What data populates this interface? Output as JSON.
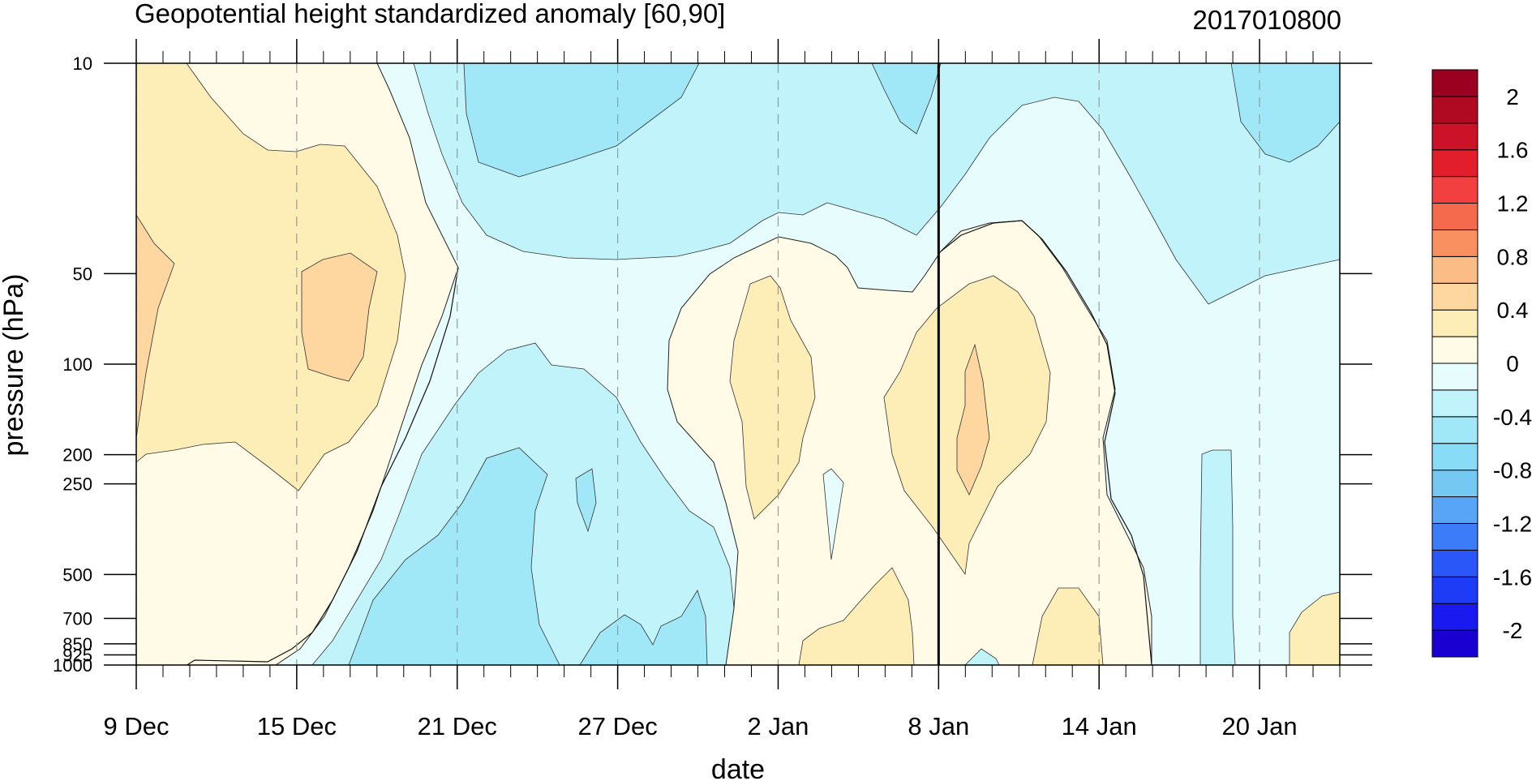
{
  "chart_data": {
    "type": "heatmap",
    "title": "Geopotential height standardized anomaly [60,90]",
    "subtitle": "2017010800",
    "xlabel": "date",
    "ylabel": "pressure (hPa)",
    "x_range": [
      "2016-12-09",
      "2017-01-23"
    ],
    "x_ticks": [
      {
        "date": "2016-12-09",
        "label": "9 Dec"
      },
      {
        "date": "2016-12-15",
        "label": "15 Dec"
      },
      {
        "date": "2016-12-21",
        "label": "21 Dec"
      },
      {
        "date": "2016-12-27",
        "label": "27 Dec"
      },
      {
        "date": "2017-01-02",
        "label": "2 Jan"
      },
      {
        "date": "2017-01-08",
        "label": "8 Jan"
      },
      {
        "date": "2017-01-14",
        "label": "14 Jan"
      },
      {
        "date": "2017-01-20",
        "label": "20 Jan"
      }
    ],
    "y_scale": "log",
    "y_range": [
      1000,
      10
    ],
    "y_ticks": [
      {
        "value": 10,
        "label": "10"
      },
      {
        "value": 50,
        "label": "50"
      },
      {
        "value": 100,
        "label": "100"
      },
      {
        "value": 200,
        "label": "200"
      },
      {
        "value": 250,
        "label": "250"
      },
      {
        "value": 500,
        "label": "500"
      },
      {
        "value": 700,
        "label": "700"
      },
      {
        "value": 850,
        "label": "850"
      },
      {
        "value": 925,
        "label": "925"
      },
      {
        "value": 1000,
        "label": "1000"
      }
    ],
    "marker_date": "2017-01-08",
    "grid": "vertical dashed lines at labeled dates",
    "colorbar": {
      "placement": "right",
      "levels": [
        -2.2,
        -2.0,
        -1.8,
        -1.6,
        -1.4,
        -1.2,
        -1.0,
        -0.8,
        -0.6,
        -0.4,
        -0.2,
        0,
        0.2,
        0.4,
        0.6,
        0.8,
        1.0,
        1.2,
        1.4,
        1.6,
        1.8,
        2.0,
        2.2
      ],
      "labels": [
        {
          "value": 2,
          "label": "2"
        },
        {
          "value": 1.6,
          "label": "1.6"
        },
        {
          "value": 1.2,
          "label": "1.2"
        },
        {
          "value": 0.8,
          "label": "0.8"
        },
        {
          "value": 0.4,
          "label": "0.4"
        },
        {
          "value": 0,
          "label": "0"
        },
        {
          "value": -0.4,
          "label": "-0.4"
        },
        {
          "value": -0.8,
          "label": "-0.8"
        },
        {
          "value": -1.2,
          "label": "-1.2"
        },
        {
          "value": -1.6,
          "label": "-1.6"
        },
        {
          "value": -2,
          "label": "-2"
        }
      ],
      "colors": [
        "#1b00d2",
        "#1a1af0",
        "#1e3cf5",
        "#2a58f8",
        "#3c7cf8",
        "#58a4f6",
        "#74c8f2",
        "#88dcf6",
        "#a0e8f8",
        "#c0f4fa",
        "#e6fcfd",
        "#fffbe6",
        "#fdeeb8",
        "#fdd6a0",
        "#fcbc86",
        "#f89060",
        "#f56a4d",
        "#f24040",
        "#e21e2c",
        "#cc1228",
        "#b00a22",
        "#9c0020"
      ]
    },
    "anomaly_samples": [
      {
        "pressure": 10,
        "values": [
          {
            "date": "2016-12-10",
            "value": 0.25
          },
          {
            "date": "2016-12-19",
            "value": -0.1
          },
          {
            "date": "2016-12-27",
            "value": -0.7
          },
          {
            "date": "2017-01-07",
            "value": -0.6
          },
          {
            "date": "2017-01-11",
            "value": -0.3
          },
          {
            "date": "2017-01-22",
            "value": -0.6
          }
        ]
      },
      {
        "pressure": 50,
        "values": [
          {
            "date": "2016-12-09",
            "value": 0.5
          },
          {
            "date": "2016-12-16",
            "value": 0.6
          },
          {
            "date": "2016-12-23",
            "value": -0.1
          },
          {
            "date": "2017-01-03",
            "value": 0.1
          },
          {
            "date": "2017-01-10",
            "value": 0.1
          },
          {
            "date": "2017-01-20",
            "value": -0.3
          }
        ]
      },
      {
        "pressure": 200,
        "values": [
          {
            "date": "2016-12-12",
            "value": 0.1
          },
          {
            "date": "2016-12-24",
            "value": -0.5
          },
          {
            "date": "2017-01-02",
            "value": 0.25
          },
          {
            "date": "2017-01-09",
            "value": 0.6
          },
          {
            "date": "2017-01-17",
            "value": -0.1
          }
        ]
      },
      {
        "pressure": 850,
        "values": [
          {
            "date": "2016-12-12",
            "value": 0.1
          },
          {
            "date": "2016-12-22",
            "value": -0.5
          },
          {
            "date": "2016-12-28",
            "value": -0.5
          },
          {
            "date": "2017-01-04",
            "value": 0.25
          },
          {
            "date": "2017-01-13",
            "value": 0.25
          },
          {
            "date": "2017-01-20",
            "value": -0.1
          }
        ]
      }
    ]
  }
}
